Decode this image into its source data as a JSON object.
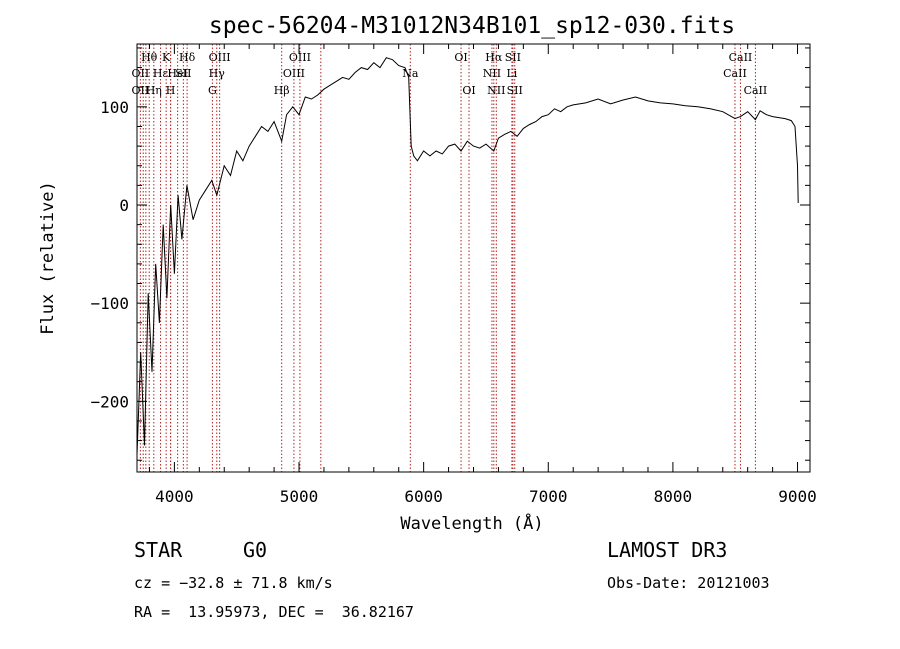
{
  "chart_data": {
    "type": "line",
    "title": "spec-56204-M31012N34B101_sp12-030.fits",
    "xlabel": "Wavelength (Å)",
    "ylabel": "Flux (relative)",
    "xlim": [
      3700,
      9100
    ],
    "ylim": [
      -272,
      164
    ],
    "xticks": [
      4000,
      5000,
      6000,
      7000,
      8000,
      9000
    ],
    "xtick_labels": [
      "4000",
      "5000",
      "6000",
      "7000",
      "8000",
      "9000"
    ],
    "yticks": [
      -200,
      -100,
      0,
      100
    ],
    "ytick_labels": [
      "−200",
      "−100",
      "0",
      "100"
    ],
    "grid": false,
    "spectrum": {
      "x": [
        3700,
        3730,
        3760,
        3790,
        3820,
        3850,
        3880,
        3910,
        3940,
        3970,
        4000,
        4030,
        4060,
        4100,
        4150,
        4200,
        4250,
        4300,
        4340,
        4400,
        4450,
        4500,
        4550,
        4600,
        4650,
        4700,
        4750,
        4800,
        4861,
        4900,
        4950,
        5000,
        5050,
        5100,
        5150,
        5200,
        5250,
        5300,
        5350,
        5400,
        5450,
        5500,
        5550,
        5600,
        5650,
        5700,
        5750,
        5800,
        5850,
        5880,
        5893,
        5900,
        5920,
        5950,
        6000,
        6050,
        6100,
        6150,
        6200,
        6250,
        6300,
        6350,
        6400,
        6450,
        6500,
        6563,
        6600,
        6650,
        6700,
        6750,
        6800,
        6850,
        6900,
        6950,
        7000,
        7050,
        7100,
        7150,
        7200,
        7300,
        7400,
        7500,
        7600,
        7700,
        7800,
        7900,
        8000,
        8100,
        8200,
        8300,
        8400,
        8498,
        8542,
        8600,
        8662,
        8700,
        8750,
        8800,
        8850,
        8900,
        8950,
        8980,
        9000,
        9005
      ],
      "y": [
        -255,
        -150,
        -245,
        -90,
        -170,
        -60,
        -120,
        -20,
        -95,
        0,
        -70,
        10,
        -35,
        20,
        -15,
        5,
        15,
        25,
        10,
        40,
        30,
        55,
        45,
        60,
        70,
        80,
        75,
        85,
        65,
        92,
        100,
        92,
        110,
        108,
        112,
        118,
        122,
        126,
        130,
        128,
        135,
        140,
        138,
        145,
        140,
        150,
        148,
        142,
        140,
        130,
        85,
        60,
        50,
        45,
        55,
        50,
        55,
        52,
        60,
        62,
        55,
        65,
        60,
        58,
        62,
        55,
        68,
        72,
        75,
        70,
        78,
        82,
        85,
        90,
        92,
        98,
        95,
        100,
        102,
        104,
        108,
        103,
        107,
        110,
        106,
        104,
        103,
        101,
        100,
        98,
        95,
        88,
        90,
        95,
        87,
        96,
        92,
        90,
        89,
        88,
        86,
        80,
        40,
        2
      ]
    },
    "lines": [
      {
        "label": "Hθ",
        "x": 3798,
        "row": 0
      },
      {
        "label": "K",
        "x": 3934,
        "row": 0
      },
      {
        "label": "Hδ",
        "x": 4102,
        "row": 0
      },
      {
        "label": "OII",
        "x": 3727,
        "row": 1
      },
      {
        "label": "Hε",
        "x": 3889,
        "row": 1
      },
      {
        "label": "HeI",
        "x": 4026,
        "row": 1
      },
      {
        "label": "SII",
        "x": 4072,
        "row": 1
      },
      {
        "label": "OIII",
        "x": 4363,
        "row": 0
      },
      {
        "label": "Hγ",
        "x": 4340,
        "row": 1
      },
      {
        "label": "G",
        "x": 4305,
        "row": 2
      },
      {
        "label": "OII",
        "x": 3727,
        "row": 2
      },
      {
        "label": "Hη",
        "x": 3835,
        "row": 2
      },
      {
        "label": "H",
        "x": 3969,
        "row": 2
      },
      {
        "label": "Hβ",
        "x": 4861,
        "row": 2
      },
      {
        "label": "OIII",
        "x": 5007,
        "row": 0
      },
      {
        "label": "OIII",
        "x": 4959,
        "row": 1
      },
      {
        "label": "Na",
        "x": 5893,
        "row": 1
      },
      {
        "label": "OI",
        "x": 6300,
        "row": 0
      },
      {
        "label": "OI",
        "x": 6364,
        "row": 2
      },
      {
        "label": "Hα",
        "x": 6563,
        "row": 0
      },
      {
        "label": "NII",
        "x": 6548,
        "row": 1
      },
      {
        "label": "NII",
        "x": 6583,
        "row": 2
      },
      {
        "label": "SII",
        "x": 6716,
        "row": 0
      },
      {
        "label": "Li",
        "x": 6708,
        "row": 1
      },
      {
        "label": "SII",
        "x": 6731,
        "row": 2
      },
      {
        "label": "CaII",
        "x": 8542,
        "row": 0
      },
      {
        "label": "CaII",
        "x": 8498,
        "row": 1
      },
      {
        "label": "CaII",
        "x": 8662,
        "row": 2
      }
    ],
    "extra_line_markers": [
      3750,
      3771,
      3970,
      4102,
      4861,
      5175,
      5893,
      6300,
      6563,
      6716,
      8498,
      8542,
      8662
    ]
  },
  "info": {
    "object_type": "STAR",
    "subclass": "G0",
    "survey": "LAMOST DR3",
    "cz": "cz = −32.8 ± 71.8 km/s",
    "obs_date": "Obs-Date: 20121003",
    "coords": "RA =  13.95973, DEC =  36.82167"
  }
}
